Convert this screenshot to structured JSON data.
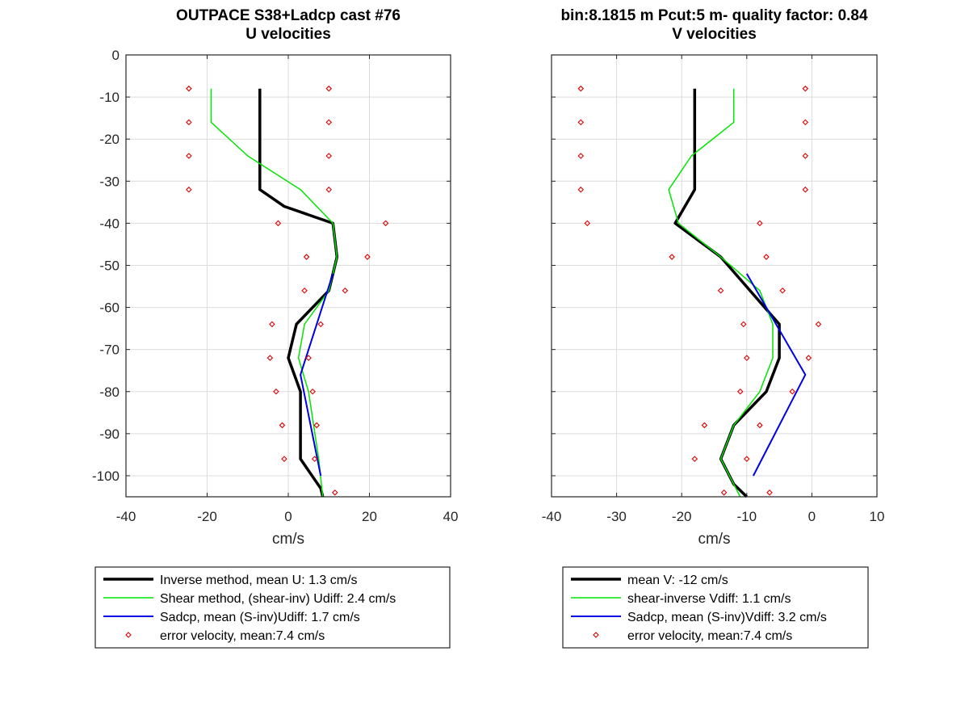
{
  "figure": {
    "left_title": [
      "OUTPACE S38+Ladcp cast #76",
      "U velocities"
    ],
    "right_title": [
      "bin:8.1815 m  Pcut:5 m- quality factor:  0.84",
      "V velocities"
    ]
  },
  "chart_data": [
    {
      "type": "line",
      "title": "U velocities",
      "xlabel": "cm/s",
      "ylabel": "",
      "xlim": [
        -40,
        40
      ],
      "ylim": [
        -105,
        0
      ],
      "xticks": [
        -40,
        -20,
        0,
        20,
        40
      ],
      "yticks": [
        0,
        -10,
        -20,
        -30,
        -40,
        -50,
        -60,
        -70,
        -80,
        -90,
        -100
      ],
      "grid": true,
      "legend_position": "below",
      "series": [
        {
          "name": "Inverse method, mean U:  1.3 cm/s",
          "style": "line",
          "color": "#000000",
          "width": 3.5,
          "x": [
            -7,
            -7,
            -7,
            -7,
            -1,
            11,
            12,
            10,
            2,
            0,
            3,
            3,
            8,
            8.5
          ],
          "y": [
            -8,
            -16,
            -24,
            -32,
            -36,
            -40,
            -48,
            -56,
            -64,
            -72,
            -80,
            -96,
            -103,
            -105
          ]
        },
        {
          "name": "Shear method, (shear-inv)  Udiff:  2.4 cm/s",
          "style": "line",
          "color": "#00e600",
          "width": 1.5,
          "x": [
            -19,
            -19,
            -10,
            3,
            11,
            12,
            10,
            4,
            2.5,
            5,
            7.5,
            8.5
          ],
          "y": [
            -8,
            -16,
            -24,
            -32,
            -40,
            -48,
            -56,
            -64,
            -72,
            -80,
            -96,
            -105
          ]
        },
        {
          "name": "Sadcp, mean (S-inv)Udiff: 1.7 cm/s",
          "style": "line",
          "color": "#0000e6",
          "width": 2,
          "x": [
            11,
            7,
            3,
            8
          ],
          "y": [
            -52,
            -64,
            -76,
            -100
          ]
        },
        {
          "name": "error velocity, mean:7.4 cm/s",
          "style": "marker",
          "color": "#dd0000",
          "x": [
            -24.5,
            -24.5,
            -24.5,
            -24.5,
            -2.5,
            4.5,
            4,
            -4,
            -4.5,
            -3,
            -1.5,
            -1,
            10,
            10,
            10,
            10,
            24,
            19.5,
            14,
            8,
            5,
            6,
            7,
            6.5,
            11.5
          ],
          "y": [
            -8,
            -16,
            -24,
            -32,
            -40,
            -48,
            -56,
            -64,
            -72,
            -80,
            -88,
            -96,
            -8,
            -16,
            -24,
            -32,
            -40,
            -48,
            -56,
            -64,
            -72,
            -80,
            -88,
            -96,
            -104
          ]
        }
      ]
    },
    {
      "type": "line",
      "title": "V velocities",
      "xlabel": "cm/s",
      "ylabel": "",
      "xlim": [
        -40,
        10
      ],
      "ylim": [
        -105,
        0
      ],
      "xticks": [
        -40,
        -30,
        -20,
        -10,
        0,
        10
      ],
      "yticks": [
        0,
        -10,
        -20,
        -30,
        -40,
        -50,
        -60,
        -70,
        -80,
        -90,
        -100
      ],
      "grid": true,
      "legend_position": "below",
      "series": [
        {
          "name": "mean V:  -12 cm/s",
          "style": "line",
          "color": "#000000",
          "width": 3.5,
          "x": [
            -18,
            -18,
            -18,
            -18,
            -21,
            -14,
            -5,
            -5,
            -7,
            -12,
            -14,
            -12,
            -10
          ],
          "y": [
            -8,
            -16,
            -24,
            -32,
            -40,
            -48,
            -64,
            -72,
            -80,
            -88,
            -96,
            -102,
            -105
          ]
        },
        {
          "name": "shear-inverse Vdiff:  1.1 cm/s",
          "style": "line",
          "color": "#00e600",
          "width": 1.5,
          "x": [
            -12,
            -12,
            -18.5,
            -22,
            -20.5,
            -14,
            -8,
            -6,
            -6,
            -8,
            -12,
            -14,
            -11
          ],
          "y": [
            -8,
            -16,
            -24,
            -32,
            -40,
            -48,
            -56,
            -64,
            -72,
            -80,
            -88,
            -96,
            -105
          ]
        },
        {
          "name": "Sadcp, mean (S-inv)Vdiff: 3.2 cm/s",
          "style": "line",
          "color": "#0000e6",
          "width": 2,
          "x": [
            -10,
            -1,
            -9
          ],
          "y": [
            -52,
            -76,
            -100
          ]
        },
        {
          "name": "error velocity, mean:7.4 cm/s",
          "style": "marker",
          "color": "#dd0000",
          "x": [
            -35.5,
            -35.5,
            -35.5,
            -35.5,
            -34.5,
            -21.5,
            -14,
            -10.5,
            -10,
            -11,
            -16.5,
            -18,
            -13.5,
            -1,
            -1,
            -1,
            -1,
            -8,
            -7,
            -4.5,
            1,
            -0.5,
            -3,
            -8,
            -10,
            -6.5
          ],
          "y": [
            -8,
            -16,
            -24,
            -32,
            -40,
            -48,
            -56,
            -64,
            -72,
            -80,
            -88,
            -96,
            -104,
            -8,
            -16,
            -24,
            -32,
            -40,
            -48,
            -56,
            -64,
            -72,
            -80,
            -88,
            -96,
            -104
          ]
        }
      ]
    }
  ]
}
